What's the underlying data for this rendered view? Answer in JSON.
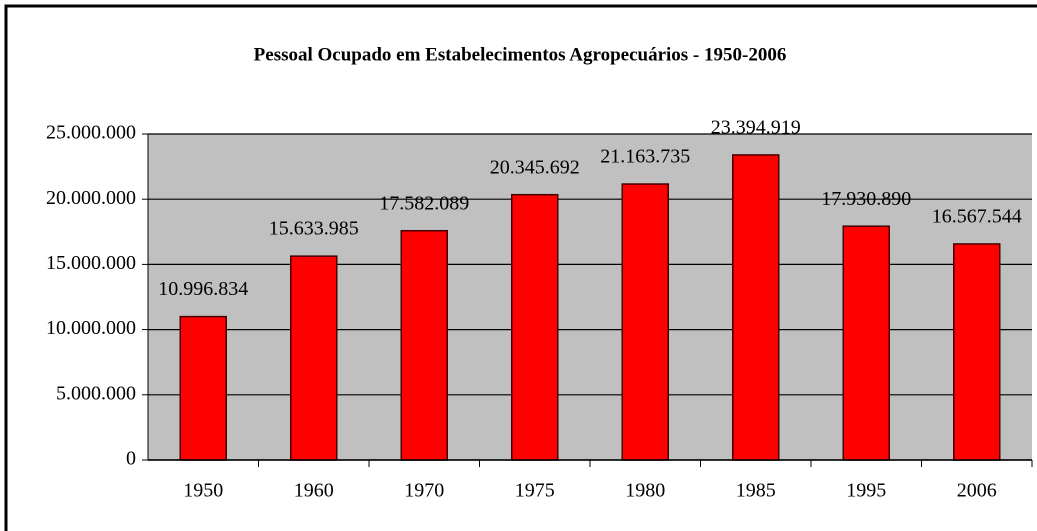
{
  "chart_data": {
    "type": "bar",
    "title": "Pessoal Ocupado em Estabelecimentos Agropecuários - 1950-2006",
    "categories": [
      "1950",
      "1960",
      "1970",
      "1975",
      "1980",
      "1985",
      "1995",
      "2006"
    ],
    "values": [
      10996834,
      15633985,
      17582089,
      20345692,
      21163735,
      23394919,
      17930890,
      16567544
    ],
    "value_labels": [
      "10.996.834",
      "15.633.985",
      "17.582.089",
      "20.345.692",
      "21.163.735",
      "23.394.919",
      "17.930.890",
      "16.567.544"
    ],
    "color": "#ff0000",
    "ylim": [
      0,
      25000000
    ],
    "yticks": [
      0,
      {
        "value": 5000000,
        "label": "5.000.000"
      },
      {
        "value": 10000000,
        "label": "10.000.000"
      },
      {
        "value": 15000000,
        "label": "15.000.000"
      },
      {
        "value": 20000000,
        "label": "20.000.000"
      },
      {
        "value": 25000000,
        "label": "25.000.000"
      }
    ],
    "grid": true
  }
}
